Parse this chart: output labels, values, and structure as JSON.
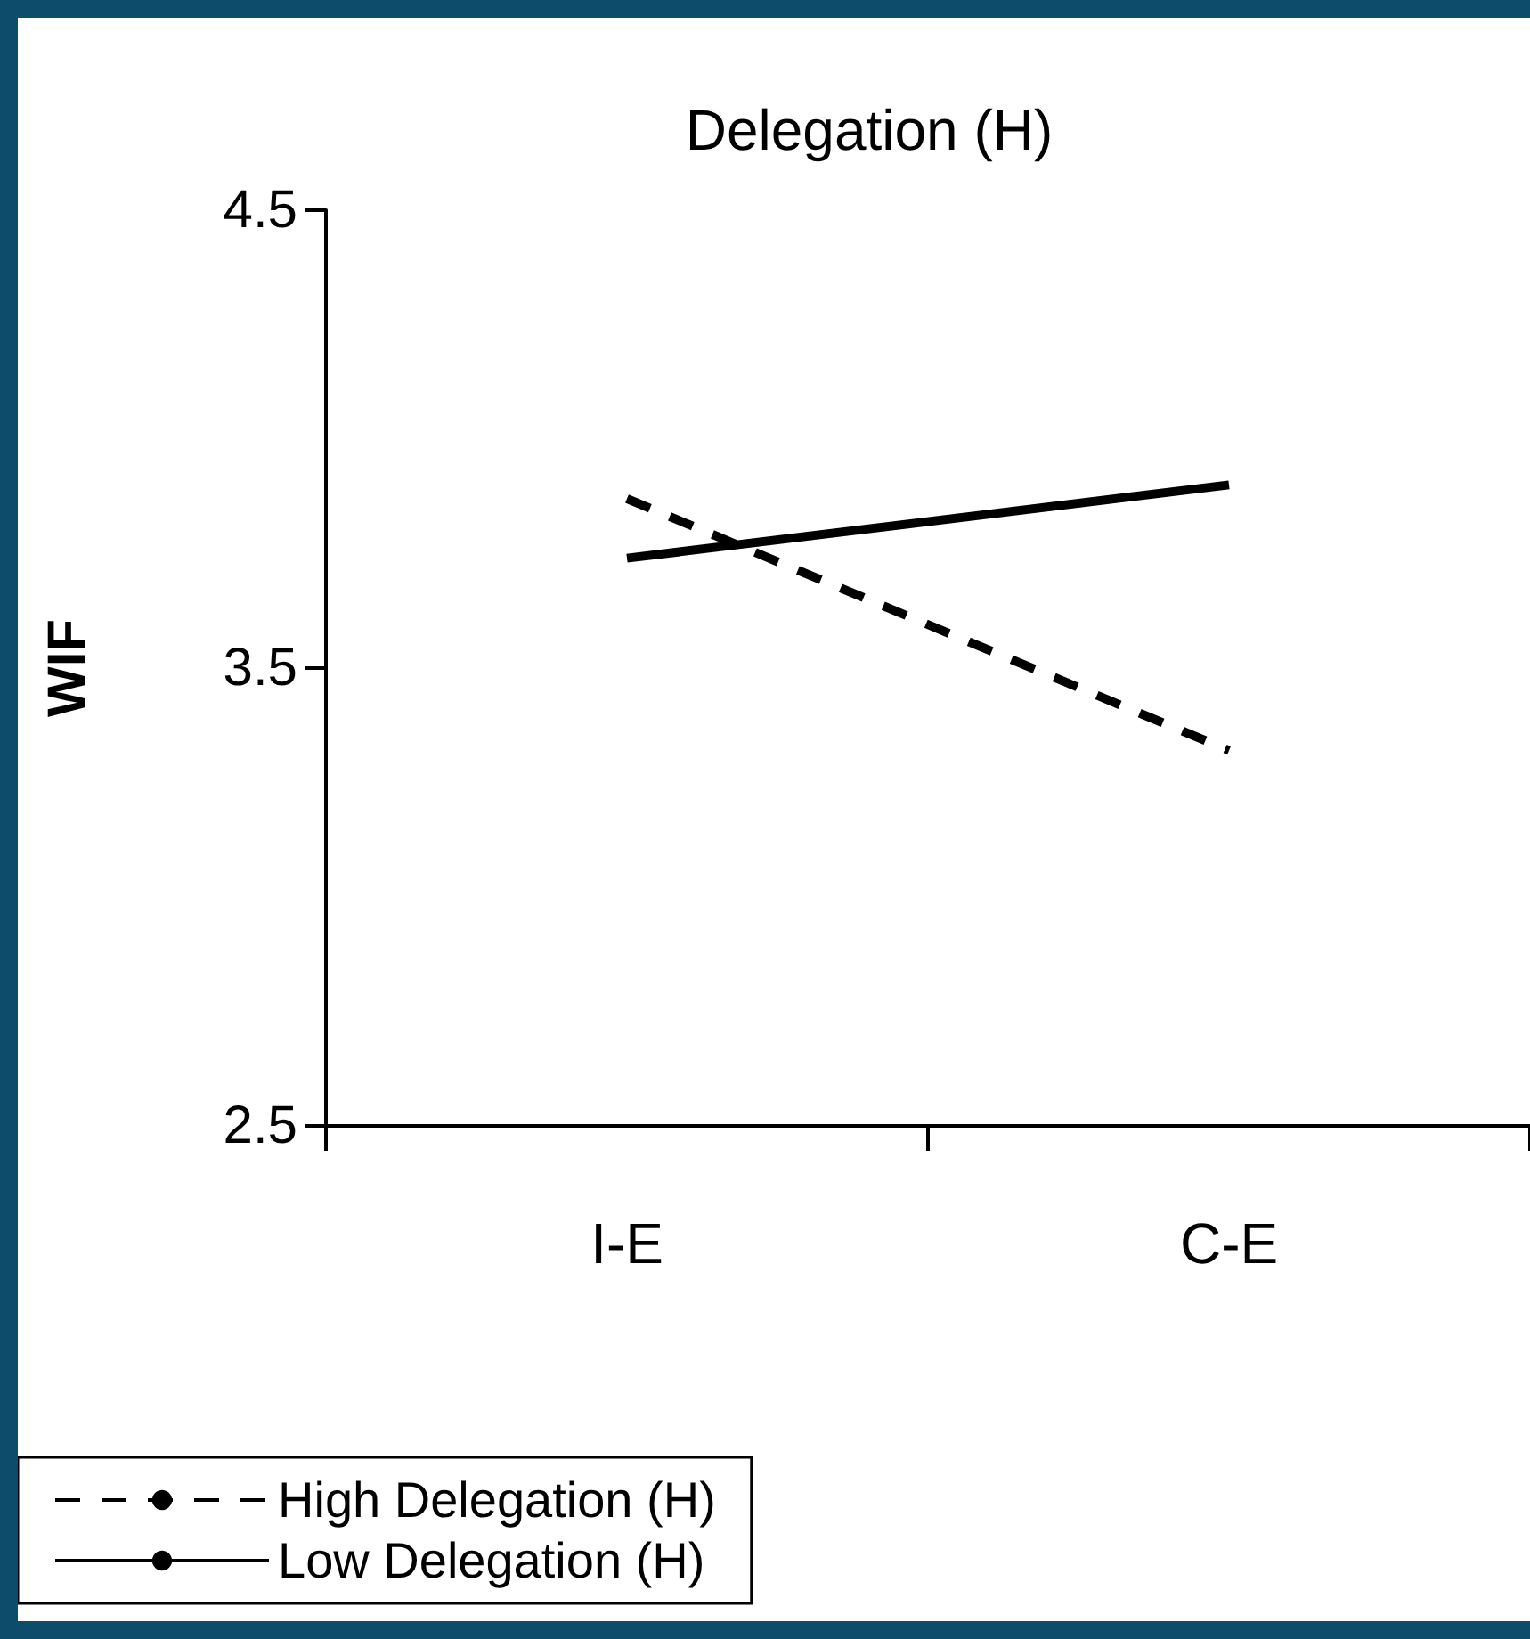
{
  "chart_data": {
    "type": "line",
    "title": "Delegation (H)",
    "ylabel": "WIF",
    "categories": [
      "I-E",
      "C-E"
    ],
    "series": [
      {
        "name": "High Delegation (H)",
        "color": "#000000",
        "line_style": "dashed",
        "values": [
          3.87,
          3.32
        ]
      },
      {
        "name": "Low Delegation (H)",
        "color": "#000000",
        "line_style": "solid",
        "values": [
          3.74,
          3.9
        ]
      }
    ],
    "ylim": [
      2.5,
      4.5
    ],
    "yticks": [
      2.5,
      3.5,
      4.5
    ],
    "grid": false,
    "legend": "bottom",
    "marker": "none"
  }
}
